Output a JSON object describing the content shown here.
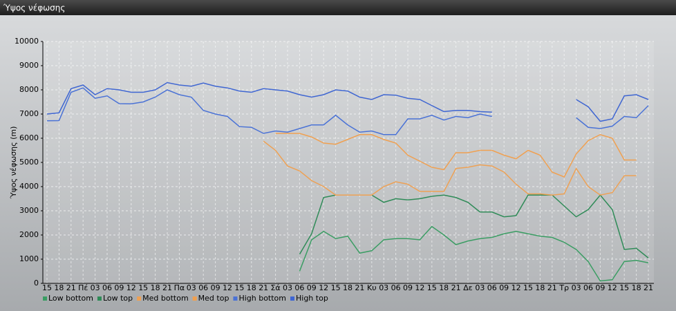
{
  "chart_data": {
    "type": "line",
    "title": "Ύψος νέφωσης",
    "y_label": "Ύψος νέφωσης (m)",
    "categories": [
      "15",
      "18",
      "21",
      "Πέ",
      "03",
      "06",
      "09",
      "12",
      "15",
      "18",
      "21",
      "Πα",
      "03",
      "06",
      "09",
      "12",
      "15",
      "18",
      "21",
      "Σά",
      "03",
      "06",
      "09",
      "12",
      "15",
      "18",
      "21",
      "Κυ",
      "03",
      "06",
      "09",
      "12",
      "15",
      "18",
      "21",
      "Δε",
      "03",
      "06",
      "09",
      "12",
      "15",
      "18",
      "21",
      "Τρ",
      "03",
      "06",
      "09",
      "12",
      "15",
      "18",
      "21"
    ],
    "ylim": [
      0,
      10000
    ],
    "yticks": [
      0,
      1000,
      2000,
      3000,
      4000,
      5000,
      6000,
      7000,
      8000,
      9000,
      10000
    ],
    "grid": true,
    "series": [
      {
        "name": "Low bottom",
        "color": "#3a9d63",
        "values": [
          null,
          null,
          null,
          null,
          null,
          null,
          null,
          null,
          null,
          null,
          null,
          null,
          null,
          null,
          null,
          null,
          null,
          null,
          null,
          null,
          null,
          500,
          1800,
          2150,
          1850,
          1950,
          1250,
          1350,
          1800,
          1850,
          1850,
          1800,
          2350,
          2000,
          1600,
          1750,
          1850,
          1900,
          2050,
          2150,
          2050,
          1950,
          1900,
          1700,
          1400,
          900,
          100,
          150,
          900,
          950,
          850
        ]
      },
      {
        "name": "Low top",
        "color": "#2e8b57",
        "values": [
          null,
          null,
          null,
          null,
          null,
          null,
          null,
          null,
          null,
          null,
          null,
          null,
          null,
          null,
          null,
          null,
          null,
          null,
          null,
          null,
          null,
          1200,
          2050,
          3550,
          3650,
          3650,
          3650,
          3650,
          3350,
          3500,
          3450,
          3500,
          3600,
          3650,
          3550,
          3350,
          2950,
          2950,
          2750,
          2800,
          3650,
          3650,
          3650,
          3200,
          2750,
          3050,
          3650,
          3050,
          1400,
          1450,
          1050
        ]
      },
      {
        "name": "Med bottom",
        "color": "#eea154",
        "values": [
          null,
          null,
          null,
          null,
          null,
          null,
          null,
          null,
          null,
          null,
          null,
          null,
          null,
          null,
          null,
          null,
          null,
          null,
          5880,
          5500,
          4850,
          4650,
          4250,
          4000,
          3650,
          3650,
          3650,
          3650,
          4000,
          4200,
          4100,
          3800,
          3800,
          3800,
          4750,
          4800,
          4900,
          4850,
          4600,
          4100,
          3700,
          3700,
          3650,
          3700,
          4750,
          4000,
          3650,
          3750,
          4450,
          4450,
          null
        ]
      },
      {
        "name": "Med top",
        "color": "#f0a050",
        "values": [
          null,
          null,
          null,
          null,
          null,
          null,
          null,
          null,
          null,
          null,
          null,
          null,
          null,
          null,
          null,
          null,
          null,
          null,
          null,
          6200,
          6200,
          6200,
          6050,
          5800,
          5750,
          5950,
          6150,
          6150,
          5950,
          5800,
          5300,
          5050,
          4800,
          4700,
          5400,
          5400,
          5500,
          5500,
          5300,
          5150,
          5500,
          5300,
          4600,
          4400,
          5350,
          5900,
          6150,
          6000,
          5100,
          5100,
          null
        ]
      },
      {
        "name": "High bottom",
        "color": "#4a72d6",
        "values": [
          6720,
          6730,
          7900,
          8080,
          7650,
          7750,
          7430,
          7420,
          7500,
          7700,
          8000,
          7800,
          7700,
          7150,
          7000,
          6900,
          6480,
          6450,
          6200,
          6300,
          6250,
          6400,
          6550,
          6550,
          6950,
          6550,
          6250,
          6300,
          6150,
          6150,
          6800,
          6800,
          6950,
          6750,
          6900,
          6850,
          7000,
          6900,
          null,
          null,
          null,
          null,
          null,
          null,
          6850,
          6450,
          6400,
          6500,
          6900,
          6850,
          7350
        ]
      },
      {
        "name": "High top",
        "color": "#3f66d2",
        "values": [
          7000,
          7050,
          8050,
          8200,
          7800,
          8050,
          8000,
          7900,
          7900,
          8000,
          8300,
          8200,
          8150,
          8280,
          8150,
          8080,
          7950,
          7900,
          8050,
          8000,
          7950,
          7800,
          7700,
          7800,
          8000,
          7950,
          7700,
          7600,
          7800,
          7780,
          7650,
          7600,
          7350,
          7100,
          7150,
          7150,
          7100,
          7080,
          null,
          null,
          null,
          null,
          null,
          null,
          7600,
          7300,
          6700,
          6800,
          7750,
          7800,
          7600
        ]
      }
    ]
  }
}
